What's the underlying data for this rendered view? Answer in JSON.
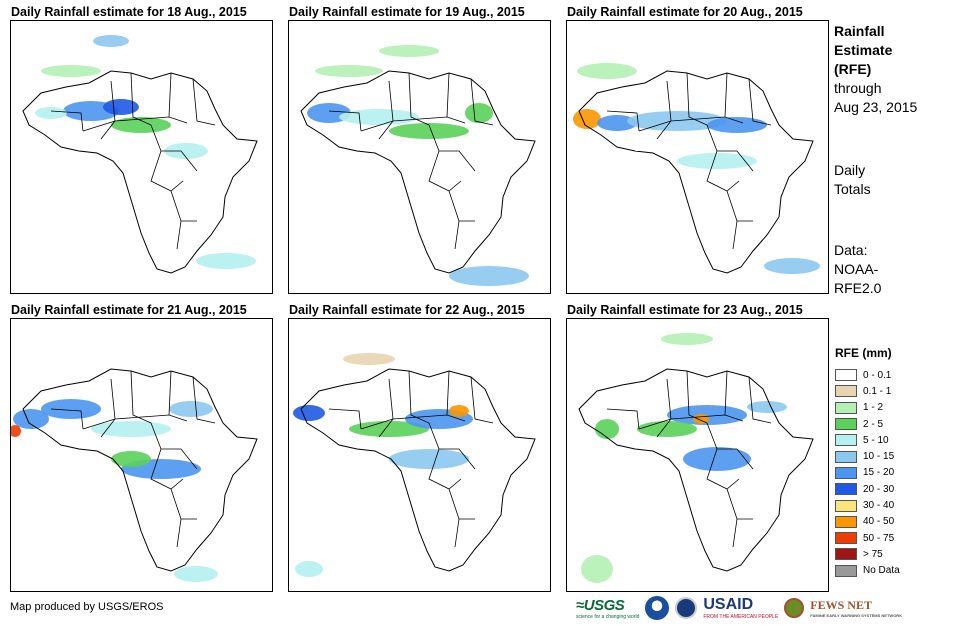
{
  "panels": [
    {
      "title": "Daily Rainfall estimate for 18 Aug., 2015"
    },
    {
      "title": "Daily Rainfall estimate for 19 Aug., 2015"
    },
    {
      "title": "Daily Rainfall estimate for 20 Aug., 2015"
    },
    {
      "title": "Daily Rainfall estimate for 21 Aug., 2015"
    },
    {
      "title": "Daily Rainfall estimate for 22 Aug., 2015"
    },
    {
      "title": "Daily Rainfall estimate for 23 Aug., 2015"
    }
  ],
  "side": {
    "title_line1": "Rainfall",
    "title_line2": "Estimate",
    "title_line3": "(RFE)",
    "through_line1": "through",
    "through_line2": "Aug 23, 2015",
    "totals_line1": "Daily",
    "totals_line2": "Totals",
    "data_line1": "Data:",
    "data_line2": "NOAA-",
    "data_line3": "RFE2.0"
  },
  "legend": {
    "title": "RFE (mm)",
    "items": [
      {
        "label": "0 - 0.1",
        "color": "#ffffff"
      },
      {
        "label": "0.1 - 1",
        "color": "#e8d4b0"
      },
      {
        "label": "1 - 2",
        "color": "#b4f0b4"
      },
      {
        "label": "2 - 5",
        "color": "#5ad25a"
      },
      {
        "label": "5 - 10",
        "color": "#b4f0f0"
      },
      {
        "label": "10 - 15",
        "color": "#8cc8f0"
      },
      {
        "label": "15 - 20",
        "color": "#4b96f0"
      },
      {
        "label": "20 - 30",
        "color": "#1e5ae6"
      },
      {
        "label": "30 - 40",
        "color": "#fae678"
      },
      {
        "label": "40 - 50",
        "color": "#fa9600"
      },
      {
        "label": "50 - 75",
        "color": "#f03c00"
      },
      {
        "label": "> 75",
        "color": "#a01414"
      },
      {
        "label": "No Data",
        "color": "#999999"
      }
    ]
  },
  "footer": {
    "credit": "Map produced by USGS/EROS",
    "usgs": "USGS",
    "usgs_tagline": "science for a changing world",
    "usaid": "USAID",
    "usaid_tagline": "FROM THE AMERICAN PEOPLE",
    "fews": "FEWS NET",
    "fews_tagline": "FAMINE EARLY WARNING SYSTEMS NETWORK"
  }
}
